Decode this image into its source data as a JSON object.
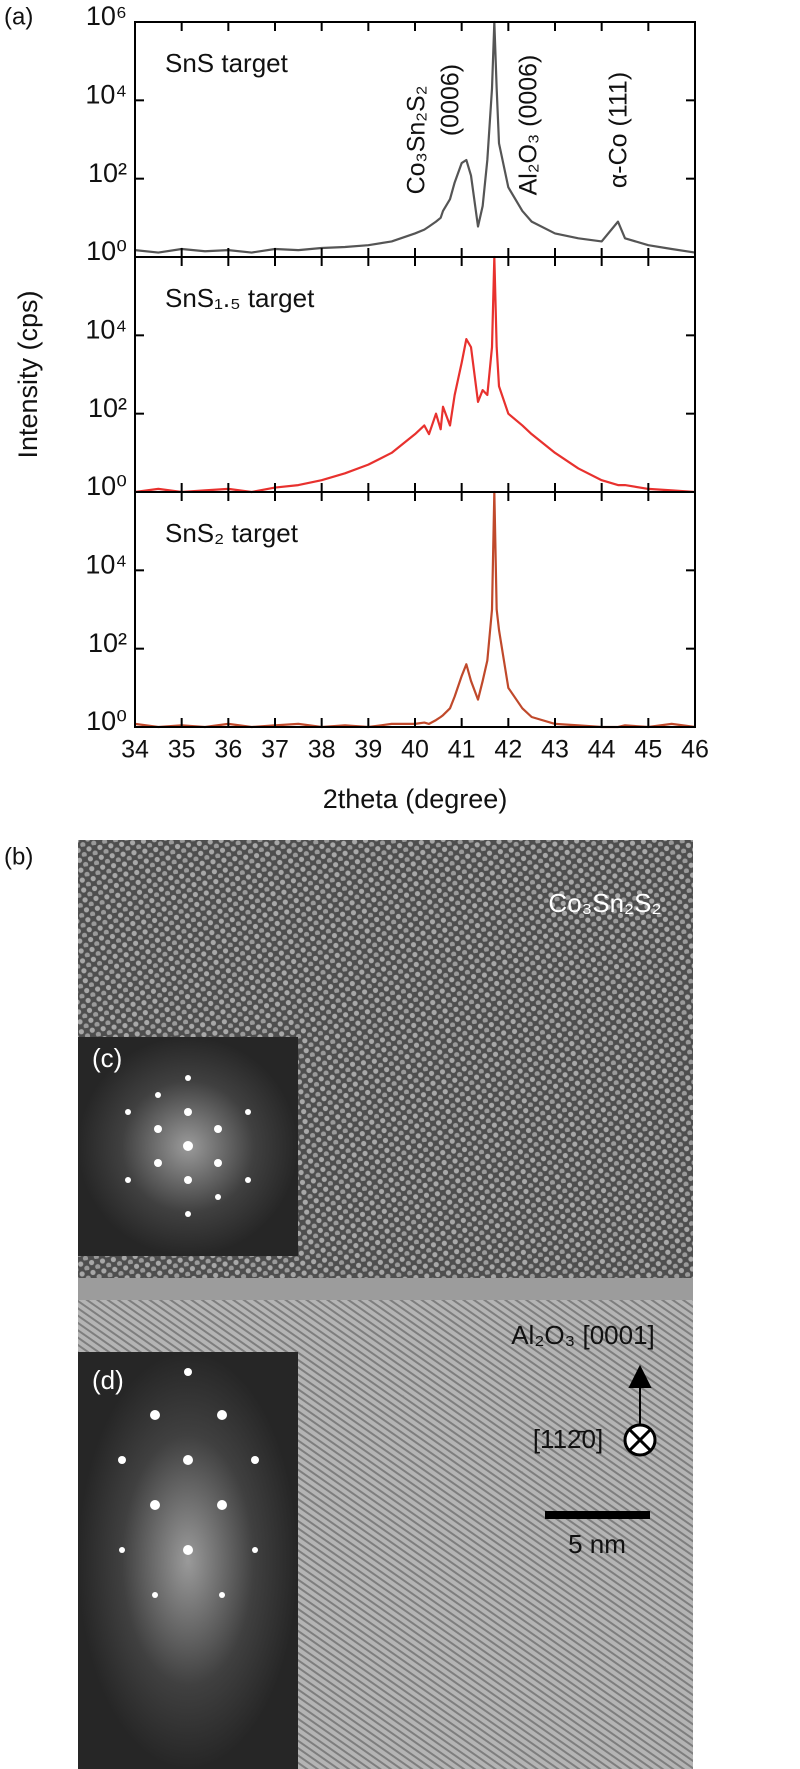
{
  "figure_labels": [
    "(a)",
    "(b)"
  ],
  "chart_data": [
    {
      "type": "line",
      "log_scale": true,
      "annotations": [
        "Co₃Sn₂S₂",
        "(0006)",
        "Al₂O₃ (0006)",
        "α-Co (111)"
      ],
      "x": [
        34,
        34.5,
        35,
        35.5,
        36,
        36.5,
        37,
        37.5,
        38,
        38.5,
        39,
        39.5,
        40,
        40.2,
        40.3,
        40.45,
        40.55,
        40.6,
        40.75,
        40.85,
        41,
        41.1,
        41.2,
        41.35,
        41.45,
        41.55,
        41.65,
        41.7,
        41.75,
        41.8,
        42,
        42.3,
        42.5,
        43,
        43.5,
        44,
        44.35,
        44.5,
        45,
        45.5,
        46
      ],
      "series": [
        {
          "name": "SnS target",
          "color": "#555555",
          "values": [
            1.5,
            1.3,
            1.6,
            1.4,
            1.5,
            1.3,
            1.6,
            1.5,
            1.7,
            1.8,
            2,
            2.5,
            4,
            5,
            6,
            8,
            10,
            15,
            30,
            80,
            250,
            300,
            120,
            6,
            20,
            300,
            20000,
            1000000,
            20000,
            800,
            60,
            15,
            8,
            4,
            3,
            2.5,
            8,
            3,
            2,
            1.6,
            1.3
          ]
        }
      ],
      "xlim": [
        34,
        46
      ],
      "xticks": [
        34,
        35,
        36,
        37,
        38,
        39,
        40,
        41,
        42,
        43,
        44,
        45,
        46
      ],
      "ylim": [
        1,
        1000000
      ],
      "yticks": [
        {
          "value": 1,
          "label": "10⁰"
        },
        {
          "value": 100,
          "label": "10²"
        },
        {
          "value": 10000,
          "label": "10⁴"
        },
        {
          "value": 1000000,
          "label": "10⁶"
        }
      ]
    },
    {
      "type": "line",
      "log_scale": true,
      "ylabel": "Intensity (cps)",
      "x": [
        34,
        34.5,
        35,
        35.5,
        36,
        36.5,
        37,
        37.5,
        38,
        38.5,
        39,
        39.5,
        40,
        40.2,
        40.3,
        40.45,
        40.55,
        40.6,
        40.75,
        40.85,
        41,
        41.1,
        41.2,
        41.35,
        41.45,
        41.55,
        41.65,
        41.7,
        41.75,
        41.8,
        42,
        42.3,
        42.5,
        43,
        43.5,
        44,
        44.35,
        44.5,
        45,
        45.5,
        46
      ],
      "series": [
        {
          "name": "SnS₁.₅ target",
          "color": "#e8312e",
          "values": [
            1,
            1.2,
            1,
            1.1,
            1.2,
            1,
            1.3,
            1.5,
            2,
            3,
            5,
            10,
            30,
            50,
            30,
            100,
            40,
            150,
            50,
            300,
            2000,
            8000,
            5000,
            200,
            400,
            300,
            5000,
            1000000,
            5000,
            500,
            100,
            50,
            30,
            10,
            4,
            2,
            1.5,
            1.5,
            1.2,
            1.1,
            1
          ]
        }
      ],
      "xlim": [
        34,
        46
      ],
      "xticks": [
        34,
        35,
        36,
        37,
        38,
        39,
        40,
        41,
        42,
        43,
        44,
        45,
        46
      ],
      "ylim": [
        1,
        1000000
      ],
      "yticks": [
        {
          "value": 1,
          "label": "10⁰"
        },
        {
          "value": 100,
          "label": "10²"
        },
        {
          "value": 10000,
          "label": "10⁴"
        }
      ]
    },
    {
      "type": "line",
      "log_scale": true,
      "xlabel": "2theta (degree)",
      "x": [
        34,
        34.5,
        35,
        35.5,
        36,
        36.5,
        37,
        37.5,
        38,
        38.5,
        39,
        39.5,
        40,
        40.2,
        40.3,
        40.45,
        40.55,
        40.6,
        40.75,
        40.85,
        41,
        41.1,
        41.2,
        41.35,
        41.45,
        41.55,
        41.65,
        41.7,
        41.75,
        41.8,
        42,
        42.3,
        42.5,
        43,
        43.5,
        44,
        44.35,
        44.5,
        45,
        45.5,
        46
      ],
      "series": [
        {
          "name": "SnS₂ target",
          "color": "#c0492b",
          "values": [
            1.2,
            1,
            1.1,
            1,
            1.2,
            1,
            1.1,
            1.2,
            1,
            1.1,
            1,
            1.2,
            1.2,
            1.3,
            1.2,
            1.5,
            1.8,
            2,
            3,
            6,
            20,
            40,
            15,
            5,
            15,
            50,
            1000,
            1000000,
            1000,
            300,
            10,
            3,
            1.8,
            1.2,
            1.1,
            1,
            1,
            1.1,
            1,
            1.2,
            1
          ]
        }
      ],
      "xlim": [
        34,
        46
      ],
      "xticks": [
        34,
        35,
        36,
        37,
        38,
        39,
        40,
        41,
        42,
        43,
        44,
        45,
        46
      ],
      "ylim": [
        1,
        1000000
      ],
      "yticks": [
        {
          "value": 1,
          "label": "10⁰"
        },
        {
          "value": 100,
          "label": "10²"
        },
        {
          "value": 10000,
          "label": "10⁴"
        }
      ]
    }
  ],
  "image": {
    "phase_label": "Co₃Sn₂S₂",
    "insets": [
      "(c)",
      "(d)"
    ],
    "direction_label": "Al₂O₃ [0001]",
    "zone_axis_label": "[112̄0]",
    "scale_bar_label": "5 nm"
  }
}
